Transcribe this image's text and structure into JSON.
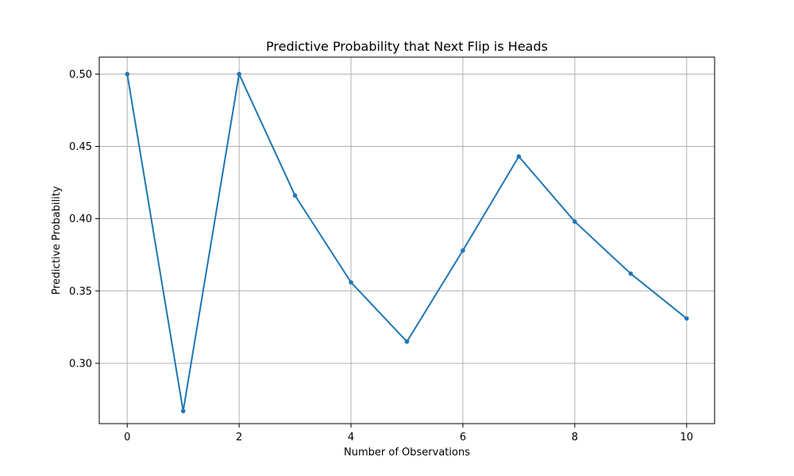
{
  "chart_data": {
    "type": "line",
    "title": "Predictive Probability that Next Flip is Heads",
    "xlabel": "Number of Observations",
    "ylabel": "Predictive Probability",
    "xlim": [
      -0.5,
      10.5
    ],
    "ylim": [
      0.2583,
      0.5117
    ],
    "x_ticks": [
      0,
      2,
      4,
      6,
      8,
      10
    ],
    "y_ticks": [
      0.3,
      0.35,
      0.4,
      0.45,
      0.5
    ],
    "x_tick_labels": [
      "0",
      "2",
      "4",
      "6",
      "8",
      "10"
    ],
    "y_tick_labels": [
      "0.30",
      "0.35",
      "0.40",
      "0.45",
      "0.50"
    ],
    "grid": true,
    "line_color": "#1f77b4",
    "series": [
      {
        "x": [
          0,
          1,
          2,
          3,
          4,
          5,
          6,
          7,
          8,
          9,
          10
        ],
        "values": [
          0.5,
          0.267,
          0.5,
          0.416,
          0.356,
          0.315,
          0.378,
          0.443,
          0.398,
          0.362,
          0.331
        ]
      }
    ]
  }
}
